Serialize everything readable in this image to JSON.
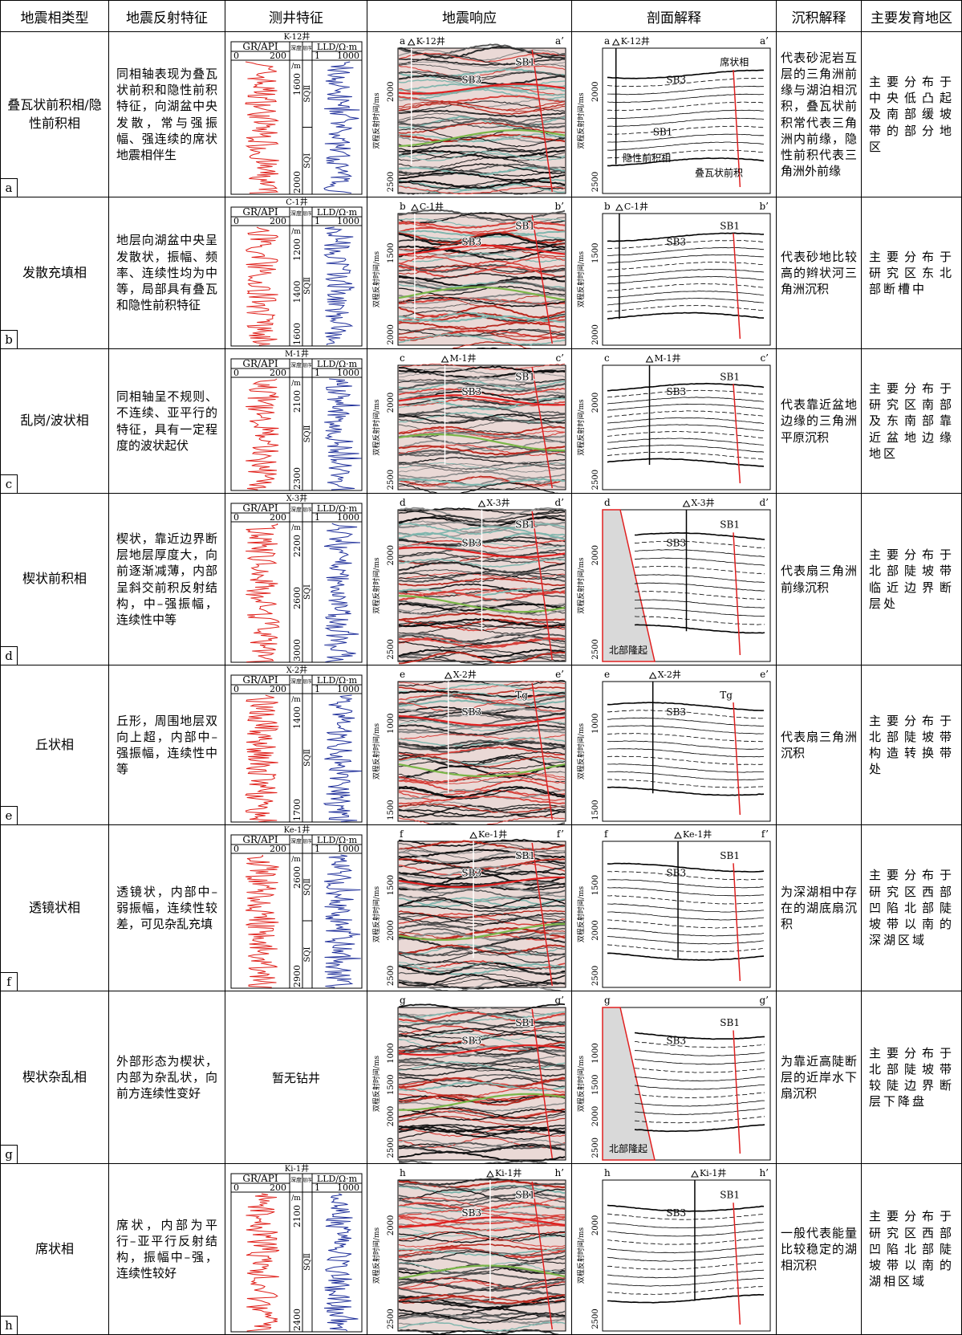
{
  "header": [
    "地震相类型",
    "地震反射特征",
    "测井特征",
    "地震响应",
    "剖面解释",
    "沉积解释",
    "主要发育地区"
  ],
  "well_log_legend": {
    "gr": "GR/API",
    "gr_min": 0,
    "gr_max": 200,
    "depth": "深度",
    "depth_unit": "/m",
    "sequence": "层序",
    "lld": "LLD/Ω·m",
    "lld_min": 1,
    "lld_max": 1000
  },
  "time_axis_label": "双程反射时间/ms",
  "rows": [
    {
      "label": "a",
      "facies": "叠瓦状前积相/隐性前积相",
      "reflection": "同相轴表现为叠瓦状前积和隐性前积特征，向湖盆中央发散，常与强振幅、强连续的席状地震相伴生",
      "well": {
        "name": "K-12井",
        "depths": [
          1600,
          2000
        ],
        "sequences": [
          "SQⅡ",
          "SQⅠ"
        ]
      },
      "seismic": {
        "left": "a",
        "right": "a’",
        "well": "K-12井",
        "yticks": [
          2000,
          2500
        ],
        "labels": [
          "SB3",
          "SB1"
        ]
      },
      "interpretation": {
        "left": "a",
        "right": "a’",
        "well": "K-12井",
        "yticks": [
          2000,
          2500
        ],
        "labels": [
          "SB3",
          "席状相",
          "SB1",
          "隐性前积相",
          "叠瓦状前积"
        ]
      },
      "deposition": "代表砂泥岩互层的三角洲前缘与湖泊相沉积，叠瓦状前积常代表三角洲内前缘，隐性前积代表三角洲外前缘",
      "region": "主要分布于中央低凸起及南部缓坡带的部分地区"
    },
    {
      "label": "b",
      "facies": "发散充填相",
      "reflection": "地层向湖盆中央呈发散状，振幅、频率、连续性均为中等，局部具有叠瓦和隐性前积特征",
      "well": {
        "name": "C-1井",
        "depths": [
          1200,
          1400,
          1600
        ],
        "sequences": [
          "SQⅡ"
        ]
      },
      "seismic": {
        "left": "b",
        "right": "b’",
        "well": "C-1井",
        "yticks": [
          1500,
          2000
        ],
        "labels": [
          "SB3",
          "SB1"
        ]
      },
      "interpretation": {
        "left": "b",
        "right": "b’",
        "well": "C-1井",
        "yticks": [
          1500,
          2000
        ],
        "labels": [
          "SB3",
          "SB1"
        ]
      },
      "deposition": "代表砂地比较高的辫状河三角洲沉积",
      "region": "主要分布于研究区东北部断槽中"
    },
    {
      "label": "c",
      "facies": "乱岗/波状相",
      "reflection": "同相轴呈不规则、不连续、亚平行的特征，具有一定程度的波状起伏",
      "well": {
        "name": "M-1井",
        "depths": [
          2100,
          2300
        ],
        "sequences": [
          "SQⅡ"
        ]
      },
      "seismic": {
        "left": "c",
        "right": "c’",
        "well": "M-1井",
        "yticks": [
          2000,
          2500
        ],
        "labels": [
          "SB3",
          "SB1"
        ]
      },
      "interpretation": {
        "left": "c",
        "right": "c’",
        "well": "M-1井",
        "yticks": [
          2000,
          2500
        ],
        "labels": [
          "SB3",
          "SB1"
        ]
      },
      "deposition": "代表靠近盆地边缘的三角洲平原沉积",
      "region": "主要分布于研究区南部及东南部靠近盆地边缘地区"
    },
    {
      "label": "d",
      "facies": "楔状前积相",
      "reflection": "楔状，靠近边界断层地层厚度大，向前逐渐减薄，内部呈斜交前积反射结构，中–强振幅，连续性中等",
      "well": {
        "name": "X-3井",
        "depths": [
          2200,
          2600,
          3000
        ],
        "sequences": [
          "SQⅠ"
        ]
      },
      "seismic": {
        "left": "d",
        "right": "d’",
        "well": "X-3井",
        "yticks": [
          2000,
          2500
        ],
        "labels": [
          "SB3",
          "SB1"
        ]
      },
      "interpretation": {
        "left": "d",
        "right": "d’",
        "well": "X-3井",
        "yticks": [
          2000,
          2500
        ],
        "labels": [
          "SB3",
          "SB1",
          "北部隆起"
        ]
      },
      "deposition": "代表扇三角洲前缘沉积",
      "region": "主要分布于北部陡坡带临近边界断层处"
    },
    {
      "label": "e",
      "facies": "丘状相",
      "reflection": "丘形，周围地层双向上超，内部中–强振幅，连续性中等",
      "well": {
        "name": "X-2井",
        "depths": [
          1400,
          1700
        ],
        "sequences": [
          "SQⅡ"
        ]
      },
      "seismic": {
        "left": "e",
        "right": "e’",
        "well": "X-2井",
        "yticks": [
          1000,
          1500
        ],
        "labels": [
          "SB3",
          "Tg"
        ]
      },
      "interpretation": {
        "left": "e",
        "right": "e’",
        "well": "X-2井",
        "yticks": [
          1000,
          1500
        ],
        "labels": [
          "SB3",
          "Tg"
        ]
      },
      "deposition": "代表扇三角洲沉积",
      "region": "主要分布于北部陡坡带构造转换带处"
    },
    {
      "label": "f",
      "facies": "透镜状相",
      "reflection": "透镜状，内部中–弱振幅，连续性较差，可见杂乱充填",
      "well": {
        "name": "Ke-1井",
        "depths": [
          2600,
          2900
        ],
        "sequences": [
          "SQⅡ",
          "SQⅠ"
        ]
      },
      "seismic": {
        "left": "f",
        "right": "f’",
        "well": "Ke-1井",
        "yticks": [
          1500,
          2000,
          2500
        ],
        "labels": [
          "SB3",
          "SB1"
        ]
      },
      "interpretation": {
        "left": "f",
        "right": "f’",
        "well": "Ke-1井",
        "yticks": [
          1500,
          2000,
          2500
        ],
        "labels": [
          "SB3",
          "SB1"
        ]
      },
      "deposition": "为深湖相中存在的湖底扇沉积",
      "region": "主要分布于研究区西部凹陷北部陡坡带以南的深湖区域"
    },
    {
      "label": "g",
      "facies": "楔状杂乱相",
      "reflection": "外部形态为楔状，内部为杂乱状，向前方连续性变好",
      "well": "暂无钻井",
      "seismic": {
        "left": "g",
        "right": "g’",
        "yticks": [
          1000,
          1500,
          2000,
          2500
        ],
        "labels": [
          "SB3",
          "SB1"
        ]
      },
      "interpretation": {
        "left": "g",
        "right": "g’",
        "yticks": [
          1000,
          1500,
          2000,
          2500
        ],
        "labels": [
          "SB3",
          "SB1",
          "北部隆起"
        ]
      },
      "deposition": "为靠近高陡断层的近岸水下扇沉积",
      "region": "主要分布于北部陡坡带较陡边界断层下降盘"
    },
    {
      "label": "h",
      "facies": "席状相",
      "reflection": "席状，内部为平行–亚平行反射结构，振幅中–强，连续性较好",
      "well": {
        "name": "Ki-1井",
        "depths": [
          2100,
          2400
        ],
        "sequences": [
          "SQⅡ"
        ]
      },
      "seismic": {
        "left": "h",
        "right": "h’",
        "well": "Ki-1井",
        "yticks": [
          2000,
          2500
        ],
        "labels": [
          "SB3",
          "SB1"
        ]
      },
      "interpretation": {
        "left": "h",
        "right": "h’",
        "well": "Ki-1井",
        "yticks": [
          2000,
          2500
        ],
        "labels": [
          "SB3",
          "SB1"
        ]
      },
      "deposition": "一般代表能量比较稳定的湖相沉积",
      "region": "主要分布于研究区西部凹陷北部陡坡带以南的湖相区域"
    }
  ]
}
